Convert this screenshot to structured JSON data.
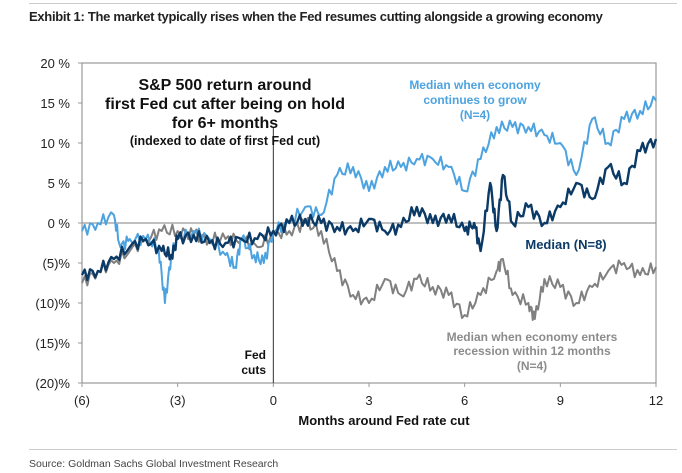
{
  "exhibit_title": "Exhibit 1: The market typically rises when the Fed resumes cutting alongside a growing economy",
  "source": "Source: Goldman Sachs Global Investment Research",
  "chart_data": {
    "type": "line",
    "title": [
      "S&P 500 return around",
      "first Fed cut after being on hold",
      "for 6+ months"
    ],
    "subtitle": "(indexed to date of first Fed cut)",
    "xlabel": "Months around Fed rate cut",
    "ylabel": "",
    "xlim": [
      -6,
      12
    ],
    "ylim": [
      -20,
      20
    ],
    "x_ticks": [
      -6,
      -3,
      0,
      3,
      6,
      9,
      12
    ],
    "x_tick_labels": [
      "(6)",
      "(3)",
      "0",
      "3",
      "6",
      "9",
      "12"
    ],
    "y_ticks": [
      20,
      15,
      10,
      5,
      0,
      -5,
      -10,
      -15,
      -20
    ],
    "y_tick_labels": [
      "20 %",
      "15 %",
      "10 %",
      "5 %",
      "0 %",
      "(5)%",
      "(10)%",
      "(15)%",
      "(20)%"
    ],
    "vline_annotation": [
      "Fed",
      "cuts"
    ],
    "colors": {
      "growth": "#4da3e0",
      "median": "#0b3a66",
      "recession": "#808080"
    },
    "series": [
      {
        "name": "growth",
        "label": [
          "Median when economy",
          "continues to grow",
          "(N=4)"
        ],
        "x": [
          -6,
          -5.5,
          -5,
          -4.8,
          -4.5,
          -4,
          -3.6,
          -3.4,
          -3.2,
          -3,
          -2.5,
          -2,
          -1.5,
          -1.2,
          -1,
          -0.6,
          -0.3,
          0,
          0.5,
          1,
          1.5,
          2,
          2.5,
          3,
          3.5,
          4,
          4.5,
          5,
          5.5,
          6,
          6.5,
          7,
          7.5,
          8,
          8.5,
          9,
          9.5,
          10,
          10.5,
          11,
          11.5,
          12
        ],
        "values": [
          -1,
          0,
          1,
          -3,
          -2,
          -2,
          -3,
          -10,
          -4,
          -2,
          -1,
          -2,
          -4,
          -5.5,
          -2,
          -4,
          -5,
          -1,
          0,
          2,
          1,
          6,
          7,
          4,
          7,
          7,
          8,
          8,
          7,
          4,
          8,
          12,
          12,
          12,
          11,
          10,
          6,
          13,
          10,
          13,
          14,
          15.3
        ]
      },
      {
        "name": "median",
        "label": [
          "Median (N=8)"
        ],
        "x": [
          -6,
          -5.5,
          -5,
          -4.5,
          -4,
          -3.5,
          -3.2,
          -3,
          -2.5,
          -2,
          -1.5,
          -1,
          -0.5,
          0,
          0.5,
          1,
          1.5,
          2,
          2.5,
          3,
          3.5,
          4,
          4.5,
          5,
          5.5,
          6,
          6.3,
          6.5,
          6.8,
          7,
          7.2,
          7.5,
          8,
          8.5,
          9,
          9.5,
          10,
          10.5,
          11,
          11.5,
          12
        ],
        "values": [
          -6.5,
          -6,
          -4.5,
          -3,
          -2,
          -3.5,
          -4,
          -2,
          -1.5,
          -2.5,
          -2.5,
          -2,
          -2,
          -1,
          0,
          0.5,
          0,
          -0.5,
          -1,
          0.5,
          -1,
          -0.5,
          2,
          0,
          1,
          -1,
          0,
          -3.5,
          5,
          -1,
          6,
          0,
          2,
          0,
          2,
          5,
          3,
          7,
          5,
          9,
          10.5
        ]
      },
      {
        "name": "recession",
        "label": [
          "Median when economy enters",
          "recession within 12 months",
          "(N=4)"
        ],
        "x": [
          -6,
          -5.5,
          -5,
          -4.5,
          -4,
          -3.5,
          -3,
          -2.5,
          -2,
          -1.5,
          -1,
          -0.5,
          0,
          0.5,
          1,
          1.5,
          2,
          2.5,
          3,
          3.5,
          4,
          4.5,
          5,
          5.5,
          6,
          6.5,
          7,
          7.2,
          7.5,
          8,
          8.2,
          8.5,
          9,
          9.5,
          10,
          10.5,
          11,
          11.5,
          12
        ],
        "values": [
          -7.5,
          -6,
          -5,
          -3.5,
          -2,
          -1,
          -1,
          -1.5,
          -2,
          -2,
          -2,
          -3,
          -1.5,
          -1,
          0,
          -1,
          -6,
          -9,
          -10,
          -7,
          -9,
          -7,
          -8,
          -9,
          -11.5,
          -9,
          -6,
          -4.5,
          -9,
          -10,
          -12,
          -7,
          -8,
          -10,
          -8,
          -6,
          -5,
          -6.5,
          -5.5
        ]
      }
    ]
  }
}
